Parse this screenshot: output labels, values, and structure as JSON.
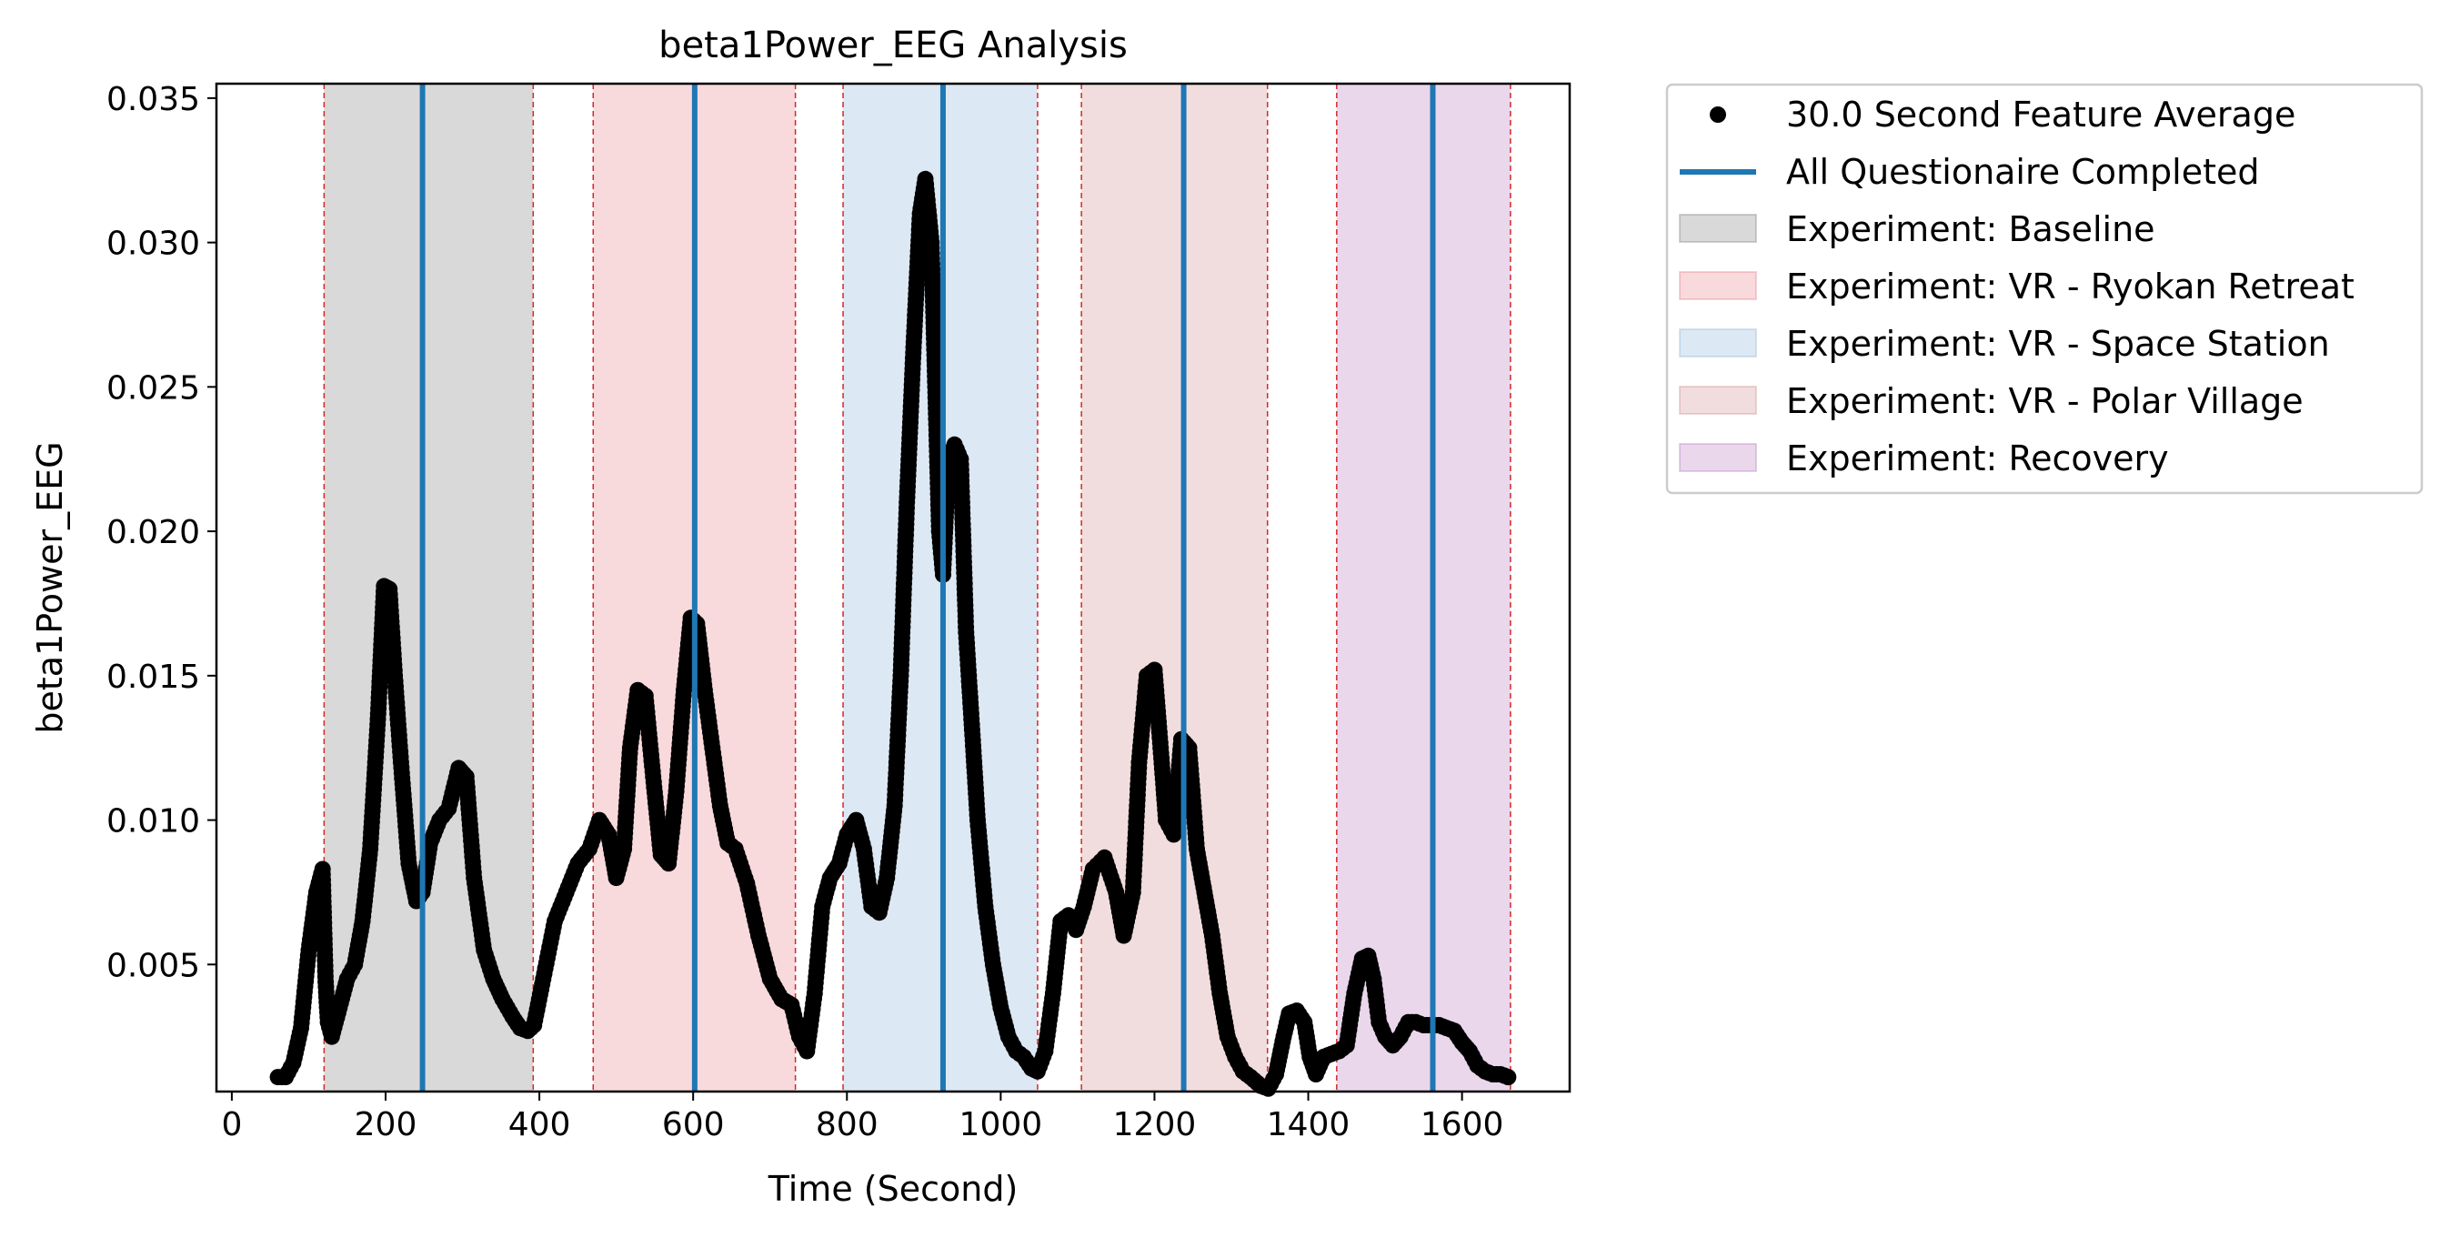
{
  "chart_data": {
    "type": "scatter",
    "title": "beta1Power_EEG Analysis",
    "xlabel": "Time (Second)",
    "ylabel": "beta1Power_EEG",
    "xlim": [
      -20,
      1740
    ],
    "ylim": [
      0.0006,
      0.0355
    ],
    "x_ticks": [
      0,
      200,
      400,
      600,
      800,
      1000,
      1200,
      1400,
      1600
    ],
    "x_tick_labels": [
      "0",
      "200",
      "400",
      "600",
      "800",
      "1000",
      "1200",
      "1400",
      "1600"
    ],
    "y_ticks": [
      0.005,
      0.01,
      0.015,
      0.02,
      0.025,
      0.03,
      0.035
    ],
    "y_tick_labels": [
      "0.005",
      "0.010",
      "0.015",
      "0.020",
      "0.025",
      "0.030",
      "0.035"
    ],
    "grid": false,
    "legend_position": "outside-right-top",
    "series": [
      {
        "name": "30.0 Second Feature Average",
        "marker": "circle",
        "color": "#000000",
        "points": [
          [
            60,
            0.0011
          ],
          [
            70,
            0.0011
          ],
          [
            80,
            0.0016
          ],
          [
            90,
            0.0028
          ],
          [
            100,
            0.0055
          ],
          [
            110,
            0.0075
          ],
          [
            118,
            0.0083
          ],
          [
            122,
            0.0044
          ],
          [
            125,
            0.003
          ],
          [
            130,
            0.0025
          ],
          [
            140,
            0.0035
          ],
          [
            150,
            0.0045
          ],
          [
            160,
            0.005
          ],
          [
            170,
            0.0065
          ],
          [
            180,
            0.009
          ],
          [
            190,
            0.0135
          ],
          [
            198,
            0.0181
          ],
          [
            205,
            0.018
          ],
          [
            212,
            0.015
          ],
          [
            220,
            0.012
          ],
          [
            230,
            0.0085
          ],
          [
            240,
            0.0072
          ],
          [
            248,
            0.0075
          ],
          [
            258,
            0.0092
          ],
          [
            270,
            0.01
          ],
          [
            282,
            0.0104
          ],
          [
            295,
            0.0118
          ],
          [
            305,
            0.0115
          ],
          [
            315,
            0.008
          ],
          [
            328,
            0.0055
          ],
          [
            340,
            0.0045
          ],
          [
            352,
            0.0038
          ],
          [
            365,
            0.0032
          ],
          [
            375,
            0.0028
          ],
          [
            385,
            0.0027
          ],
          [
            393,
            0.0029
          ],
          [
            405,
            0.0045
          ],
          [
            420,
            0.0065
          ],
          [
            435,
            0.0075
          ],
          [
            450,
            0.0085
          ],
          [
            465,
            0.009
          ],
          [
            478,
            0.01
          ],
          [
            490,
            0.0095
          ],
          [
            500,
            0.008
          ],
          [
            510,
            0.009
          ],
          [
            518,
            0.0125
          ],
          [
            528,
            0.0145
          ],
          [
            538,
            0.0143
          ],
          [
            548,
            0.0115
          ],
          [
            558,
            0.0088
          ],
          [
            568,
            0.0085
          ],
          [
            578,
            0.011
          ],
          [
            588,
            0.0145
          ],
          [
            597,
            0.017
          ],
          [
            605,
            0.0168
          ],
          [
            615,
            0.0145
          ],
          [
            625,
            0.0125
          ],
          [
            635,
            0.0105
          ],
          [
            645,
            0.0092
          ],
          [
            655,
            0.009
          ],
          [
            670,
            0.0078
          ],
          [
            685,
            0.006
          ],
          [
            700,
            0.0045
          ],
          [
            715,
            0.0038
          ],
          [
            728,
            0.0036
          ],
          [
            738,
            0.0025
          ],
          [
            748,
            0.002
          ],
          [
            758,
            0.004
          ],
          [
            768,
            0.007
          ],
          [
            778,
            0.008
          ],
          [
            790,
            0.0085
          ],
          [
            800,
            0.0095
          ],
          [
            812,
            0.01
          ],
          [
            822,
            0.009
          ],
          [
            832,
            0.007
          ],
          [
            842,
            0.0068
          ],
          [
            852,
            0.008
          ],
          [
            862,
            0.0105
          ],
          [
            870,
            0.015
          ],
          [
            878,
            0.021
          ],
          [
            886,
            0.026
          ],
          [
            895,
            0.031
          ],
          [
            902,
            0.0322
          ],
          [
            910,
            0.03
          ],
          [
            915,
            0.025
          ],
          [
            920,
            0.02
          ],
          [
            925,
            0.0185
          ],
          [
            932,
            0.0225
          ],
          [
            940,
            0.023
          ],
          [
            948,
            0.0225
          ],
          [
            955,
            0.0165
          ],
          [
            962,
            0.0135
          ],
          [
            970,
            0.01
          ],
          [
            980,
            0.007
          ],
          [
            990,
            0.005
          ],
          [
            1000,
            0.0035
          ],
          [
            1010,
            0.0025
          ],
          [
            1020,
            0.002
          ],
          [
            1030,
            0.0018
          ],
          [
            1040,
            0.0014
          ],
          [
            1048,
            0.0013
          ],
          [
            1058,
            0.002
          ],
          [
            1068,
            0.004
          ],
          [
            1078,
            0.0065
          ],
          [
            1088,
            0.0067
          ],
          [
            1098,
            0.0062
          ],
          [
            1108,
            0.007
          ],
          [
            1120,
            0.0083
          ],
          [
            1135,
            0.0087
          ],
          [
            1150,
            0.0075
          ],
          [
            1160,
            0.006
          ],
          [
            1172,
            0.0075
          ],
          [
            1180,
            0.012
          ],
          [
            1190,
            0.015
          ],
          [
            1200,
            0.0152
          ],
          [
            1208,
            0.0125
          ],
          [
            1215,
            0.01
          ],
          [
            1225,
            0.0095
          ],
          [
            1235,
            0.0128
          ],
          [
            1245,
            0.0125
          ],
          [
            1255,
            0.009
          ],
          [
            1265,
            0.0075
          ],
          [
            1275,
            0.006
          ],
          [
            1285,
            0.004
          ],
          [
            1295,
            0.0025
          ],
          [
            1305,
            0.0018
          ],
          [
            1315,
            0.0013
          ],
          [
            1325,
            0.0011
          ],
          [
            1338,
            0.0008
          ],
          [
            1348,
            0.0007
          ],
          [
            1358,
            0.0012
          ],
          [
            1368,
            0.0025
          ],
          [
            1375,
            0.0033
          ],
          [
            1385,
            0.0034
          ],
          [
            1395,
            0.003
          ],
          [
            1402,
            0.0018
          ],
          [
            1410,
            0.0012
          ],
          [
            1420,
            0.0018
          ],
          [
            1430,
            0.0019
          ],
          [
            1440,
            0.002
          ],
          [
            1450,
            0.0022
          ],
          [
            1460,
            0.004
          ],
          [
            1470,
            0.0052
          ],
          [
            1478,
            0.0053
          ],
          [
            1485,
            0.0045
          ],
          [
            1492,
            0.003
          ],
          [
            1500,
            0.0025
          ],
          [
            1510,
            0.0022
          ],
          [
            1520,
            0.0025
          ],
          [
            1530,
            0.003
          ],
          [
            1540,
            0.003
          ],
          [
            1550,
            0.0029
          ],
          [
            1560,
            0.0029
          ],
          [
            1570,
            0.0029
          ],
          [
            1580,
            0.0028
          ],
          [
            1590,
            0.0027
          ],
          [
            1600,
            0.0023
          ],
          [
            1610,
            0.002
          ],
          [
            1620,
            0.0015
          ],
          [
            1630,
            0.0013
          ],
          [
            1640,
            0.0012
          ],
          [
            1650,
            0.0012
          ],
          [
            1660,
            0.0011
          ]
        ]
      }
    ],
    "questionnaire_lines": {
      "name": "All Questionaire Completed",
      "color": "#1f77b4",
      "x": [
        248,
        602,
        925,
        1238,
        1562
      ]
    },
    "phases": [
      {
        "name": "Experiment: Baseline",
        "x_start": 120,
        "x_end": 392,
        "color": "#808080"
      },
      {
        "name": "Experiment: VR - Ryokan Retreat",
        "x_start": 470,
        "x_end": 733,
        "color": "#e8808a"
      },
      {
        "name": "Experiment: VR - Space Station",
        "x_start": 795,
        "x_end": 1048,
        "color": "#8cb4d8"
      },
      {
        "name": "Experiment: VR - Polar Village",
        "x_start": 1105,
        "x_end": 1347,
        "color": "#cf9090"
      },
      {
        "name": "Experiment: Recovery",
        "x_start": 1437,
        "x_end": 1663,
        "color": "#b87cc0"
      }
    ],
    "boundary_line_color": "#d62728"
  }
}
